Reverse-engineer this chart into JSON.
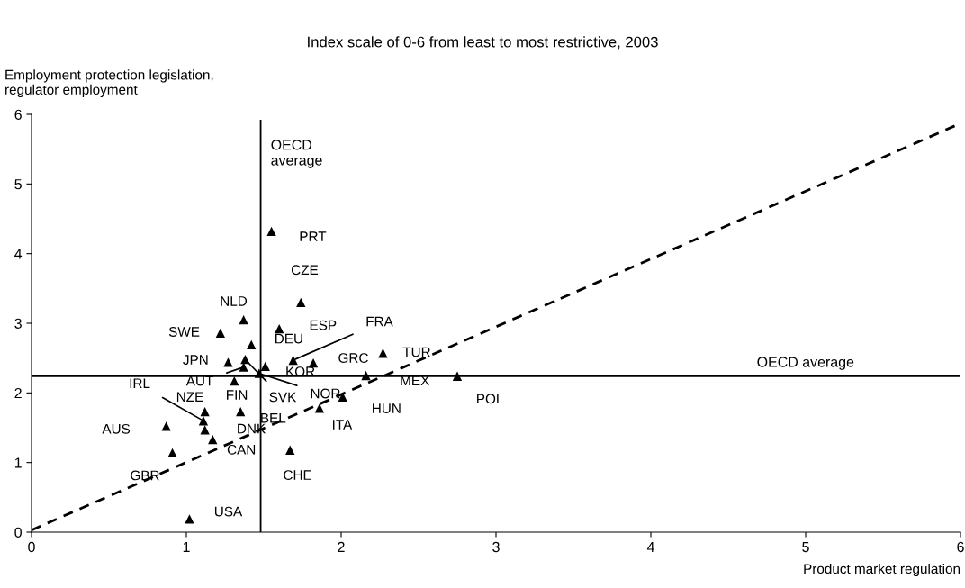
{
  "chart_data": {
    "type": "scatter",
    "title": "Index scale of 0-6 from least to most restrictive, 2003",
    "xlabel": "Product market regulation",
    "ylabel": "Employment protection legislation,\nregulator employment",
    "xlim": [
      0,
      6
    ],
    "ylim": [
      0,
      6
    ],
    "xticks": [
      0,
      1,
      2,
      3,
      4,
      5,
      6
    ],
    "yticks": [
      0,
      1,
      2,
      3,
      4,
      5,
      6
    ],
    "grid": false,
    "legend": false,
    "marker": "triangle",
    "series": [
      {
        "type": "scatter",
        "color": "#000000",
        "x": [
          1.55,
          1.74,
          1.37,
          1.22,
          1.6,
          1.42,
          1.69,
          1.82,
          2.27,
          1.27,
          1.37,
          1.38,
          1.31,
          1.51,
          1.47,
          2.16,
          2.75,
          2.01,
          1.86,
          1.35,
          1.11,
          1.12,
          1.12,
          1.17,
          0.87,
          0.91,
          1.67,
          1.02
        ],
        "values": [
          4.32,
          3.3,
          3.05,
          2.86,
          2.92,
          2.69,
          2.47,
          2.43,
          2.57,
          2.44,
          2.37,
          2.48,
          2.17,
          2.38,
          2.28,
          2.25,
          2.24,
          1.94,
          1.78,
          1.73,
          1.6,
          1.73,
          1.47,
          1.33,
          1.52,
          1.14,
          1.18,
          0.19
        ]
      },
      {
        "type": "line",
        "color": "#000000",
        "line_style": "dashed",
        "marker": "none",
        "x": [
          0,
          6
        ],
        "values": [
          0.03,
          5.87
        ]
      }
    ],
    "annotations": [
      {
        "text": "PRT",
        "x": 1.55,
        "y": 4.32
      },
      {
        "text": "CZE",
        "x": 1.74,
        "y": 3.3
      },
      {
        "text": "NLD",
        "x": 1.37,
        "y": 3.05
      },
      {
        "text": "SWE",
        "x": 1.22,
        "y": 2.86
      },
      {
        "text": "ESP",
        "x": 1.6,
        "y": 2.92
      },
      {
        "text": "DEU",
        "x": 1.42,
        "y": 2.69
      },
      {
        "text": "FRA",
        "x": 1.69,
        "y": 2.47
      },
      {
        "text": "GRC",
        "x": 1.82,
        "y": 2.43
      },
      {
        "text": "TUR",
        "x": 2.27,
        "y": 2.57
      },
      {
        "text": "JPN",
        "x": 1.27,
        "y": 2.44
      },
      {
        "text": "AUT",
        "x": 1.37,
        "y": 2.37
      },
      {
        "text": "SVK",
        "x": 1.38,
        "y": 2.48
      },
      {
        "text": "FIN",
        "x": 1.31,
        "y": 2.17
      },
      {
        "text": "KOR",
        "x": 1.51,
        "y": 2.38
      },
      {
        "text": "NOR",
        "x": 1.47,
        "y": 2.28
      },
      {
        "text": "MEX",
        "x": 2.16,
        "y": 2.25
      },
      {
        "text": "POL",
        "x": 2.75,
        "y": 2.24
      },
      {
        "text": "HUN",
        "x": 2.01,
        "y": 1.94
      },
      {
        "text": "ITA",
        "x": 1.86,
        "y": 1.78
      },
      {
        "text": "BEL",
        "x": 1.35,
        "y": 1.73
      },
      {
        "text": "IRL",
        "x": 1.11,
        "y": 1.6
      },
      {
        "text": "NZE",
        "x": 1.12,
        "y": 1.73
      },
      {
        "text": "DNK",
        "x": 1.12,
        "y": 1.47
      },
      {
        "text": "CAN",
        "x": 1.17,
        "y": 1.33
      },
      {
        "text": "AUS",
        "x": 0.87,
        "y": 1.52
      },
      {
        "text": "GBR",
        "x": 0.91,
        "y": 1.14
      },
      {
        "text": "CHE",
        "x": 1.67,
        "y": 1.18
      },
      {
        "text": "USA",
        "x": 1.02,
        "y": 0.19
      }
    ],
    "ref_lines": [
      {
        "axis": "x",
        "value": 1.48,
        "label": "OECD\naverage",
        "color": "#000000"
      },
      {
        "axis": "y",
        "value": 2.24,
        "label": "OECD average",
        "color": "#000000"
      }
    ]
  }
}
